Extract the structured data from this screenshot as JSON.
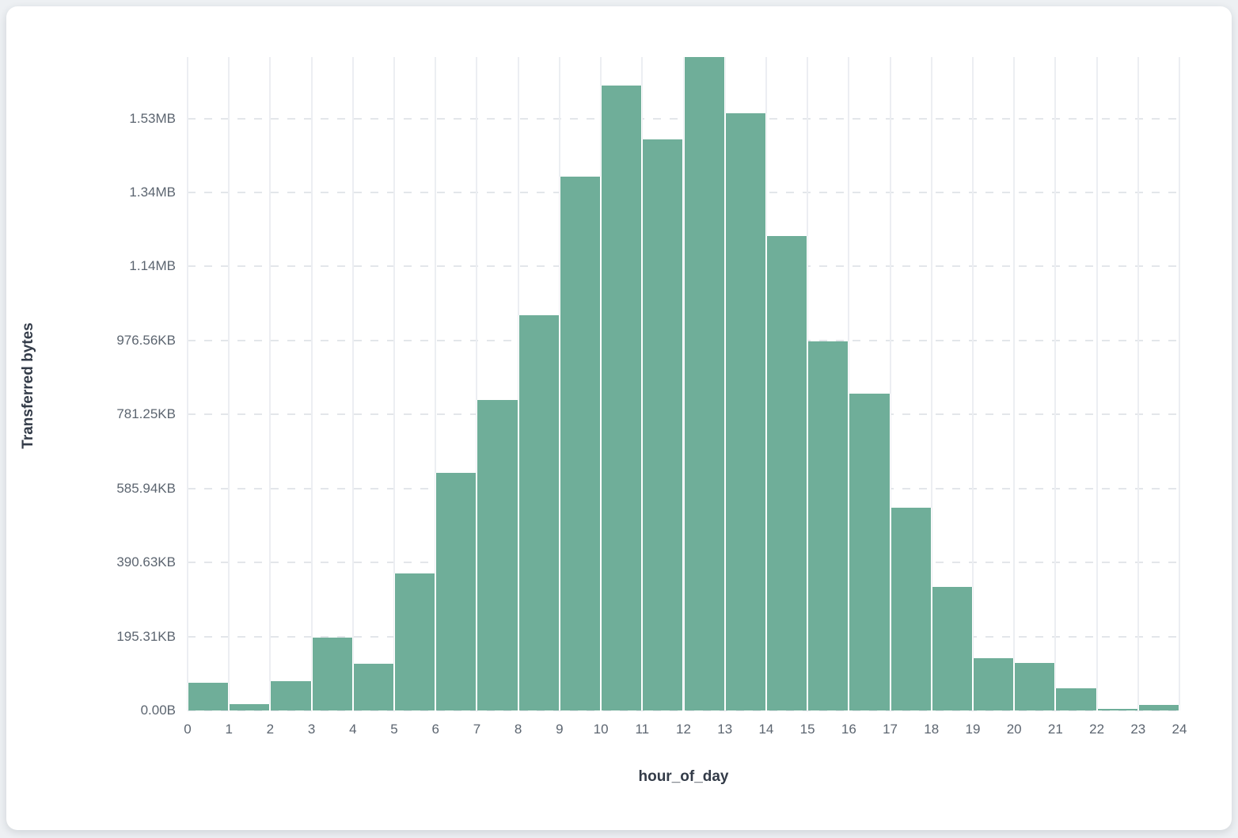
{
  "page": {
    "background_color": "#edf0f3",
    "card_background_color": "#ffffff"
  },
  "chart_data": {
    "type": "bar",
    "subtype": "histogram",
    "title": "",
    "xlabel": "hour_of_day",
    "ylabel": "Transferred bytes",
    "bar_color": "#6fae99",
    "grid": true,
    "legend": "none",
    "x_tick_labels": [
      "0",
      "1",
      "2",
      "3",
      "4",
      "5",
      "6",
      "7",
      "8",
      "9",
      "10",
      "11",
      "12",
      "13",
      "14",
      "15",
      "16",
      "17",
      "18",
      "19",
      "20",
      "21",
      "22",
      "23",
      "24"
    ],
    "y_tick_labels": [
      "0.00B",
      "195.31KB",
      "390.63KB",
      "585.94KB",
      "781.25KB",
      "976.56KB",
      "1.14MB",
      "1.34MB",
      "1.53MB"
    ],
    "y_tick_values_bytes": [
      0,
      200000,
      400000,
      600000,
      800000,
      1000000,
      1200000,
      1400000,
      1600000
    ],
    "ylim_bytes": [
      0,
      1766000
    ],
    "bin_start_hours": [
      0,
      1,
      2,
      3,
      4,
      5,
      6,
      7,
      8,
      9,
      10,
      11,
      12,
      13,
      14,
      15,
      16,
      17,
      18,
      19,
      20,
      21,
      22,
      23
    ],
    "values_bytes": [
      75000,
      17000,
      80000,
      197000,
      127000,
      370000,
      642000,
      839000,
      1069000,
      1443000,
      1690000,
      1544000,
      1766000,
      1614000,
      1282000,
      997000,
      857000,
      547000,
      335000,
      142000,
      128000,
      61000,
      5000,
      14000
    ]
  }
}
